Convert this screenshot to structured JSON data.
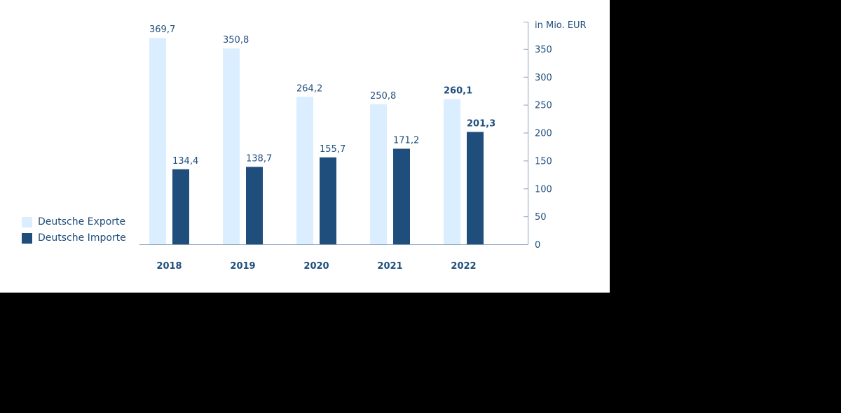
{
  "colors": {
    "exports": "#dbeeff",
    "imports": "#1f4e7d",
    "text": "#1f4e7d",
    "axis": "#8aa2bd",
    "background": "#ffffff"
  },
  "legend": {
    "exports_label": "Deutsche Exporte",
    "imports_label": "Deutsche Importe"
  },
  "chart_data": {
    "type": "bar",
    "categories": [
      "2018",
      "2019",
      "2020",
      "2021",
      "2022"
    ],
    "series": [
      {
        "name": "Deutsche Exporte",
        "values": [
          369.7,
          350.8,
          264.2,
          250.8,
          260.1
        ],
        "labels": [
          "369,7",
          "350,8",
          "264,2",
          "250,8",
          "260,1"
        ]
      },
      {
        "name": "Deutsche Importe",
        "values": [
          134.4,
          138.7,
          155.7,
          171.2,
          201.3
        ],
        "labels": [
          "134,4",
          "138,7",
          "155,7",
          "171,2",
          "201,3"
        ]
      }
    ],
    "yaxis": {
      "unit_label": "in Mio. EUR",
      "ticks": [
        0,
        50,
        100,
        150,
        200,
        250,
        300,
        350
      ],
      "ylim": [
        0,
        400
      ],
      "position": "right"
    },
    "legend_position": "bottom-left",
    "grid": false
  }
}
